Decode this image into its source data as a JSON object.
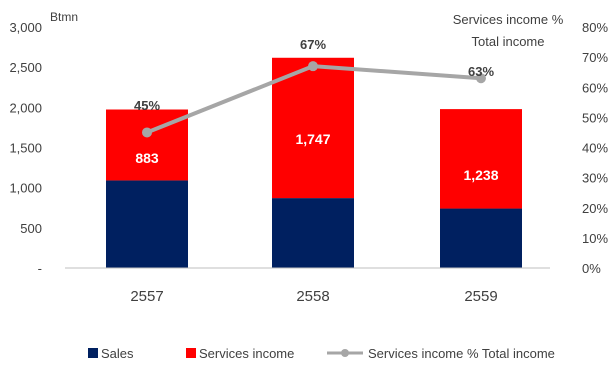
{
  "chart_data": {
    "type": "bar",
    "stacked": true,
    "categories": [
      "2557",
      "2558",
      "2559"
    ],
    "left_axis": {
      "unit_label": "Btmn",
      "range": [
        0,
        3000
      ],
      "ticks": [
        {
          "value": 0,
          "label": "-"
        },
        {
          "value": 500,
          "label": "500"
        },
        {
          "value": 1000,
          "label": "1,000"
        },
        {
          "value": 1500,
          "label": "1,500"
        },
        {
          "value": 2000,
          "label": "2,000"
        },
        {
          "value": 2500,
          "label": "2,500"
        },
        {
          "value": 3000,
          "label": "3,000"
        }
      ]
    },
    "right_axis": {
      "label_line1": "Services income %",
      "label_line2": "Total income",
      "range": [
        0,
        80
      ],
      "ticks": [
        {
          "value": 0,
          "label": "0%"
        },
        {
          "value": 10,
          "label": "10%"
        },
        {
          "value": 20,
          "label": "20%"
        },
        {
          "value": 30,
          "label": "30%"
        },
        {
          "value": 40,
          "label": "40%"
        },
        {
          "value": 50,
          "label": "50%"
        },
        {
          "value": 60,
          "label": "60%"
        },
        {
          "value": 70,
          "label": "70%"
        },
        {
          "value": 80,
          "label": "80%"
        }
      ]
    },
    "series": [
      {
        "name": "Sales",
        "type": "bar",
        "axis": "left",
        "color": "#002060",
        "values": [
          1090,
          870,
          740
        ],
        "labels": [
          "",
          "",
          ""
        ]
      },
      {
        "name": "Services income",
        "type": "bar",
        "axis": "left",
        "color": "#ff0000",
        "values": [
          883,
          1747,
          1238
        ],
        "labels": [
          "883",
          "1,747",
          "1,238"
        ]
      },
      {
        "name": "Services income % Total income",
        "type": "line",
        "axis": "right",
        "color": "#a6a6a6",
        "values": [
          45,
          67,
          63
        ],
        "labels": [
          "45%",
          "67%",
          "63%"
        ]
      }
    ],
    "legend_position": "bottom",
    "grid": false
  }
}
